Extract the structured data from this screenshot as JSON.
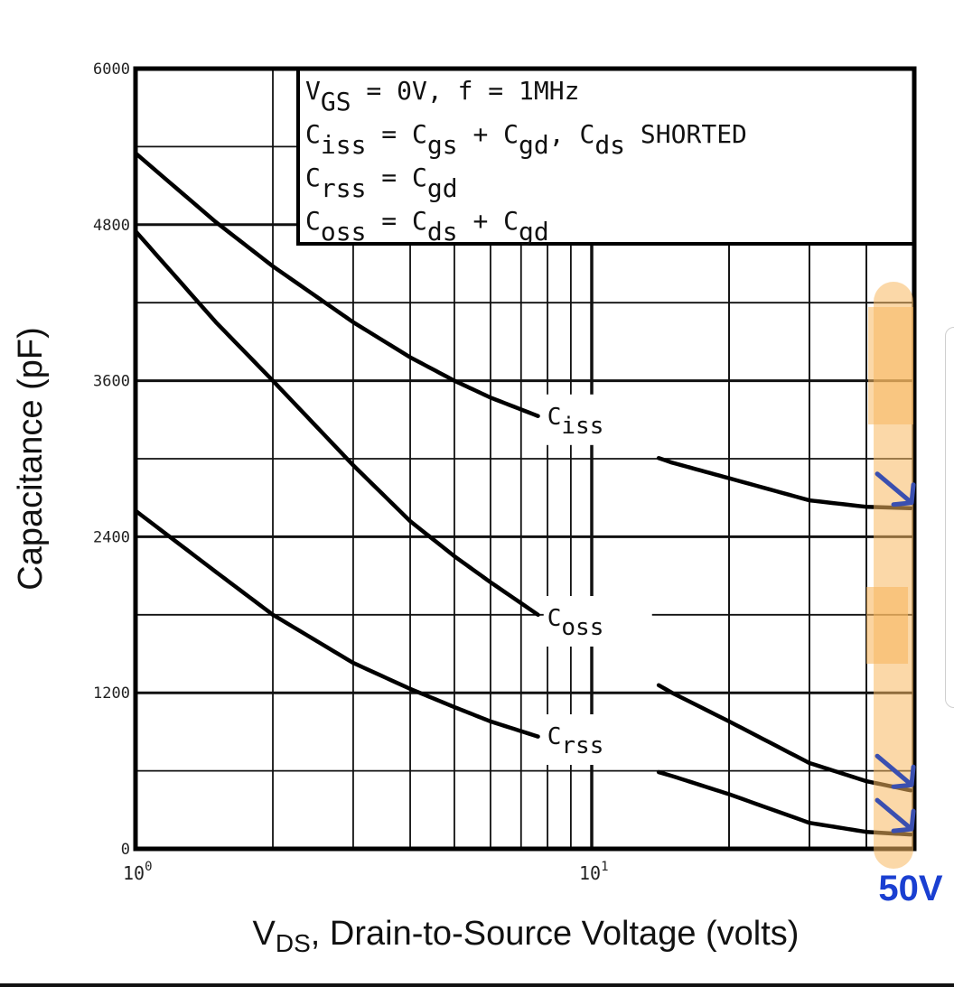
{
  "chart_data": {
    "type": "line",
    "title": "",
    "xlabel": "VDS, Drain-to-Source Voltage (volts)",
    "xlabel_main": "V",
    "xlabel_sub": "DS",
    "xlabel_rest": ", Drain-to-Source Voltage (volts)",
    "ylabel": "Capacitance (pF)",
    "xscale": "log",
    "xlim": [
      1,
      50
    ],
    "ylim": [
      0,
      6000
    ],
    "grid": true,
    "y_ticks": [
      0,
      1200,
      2400,
      3600,
      4800,
      6000
    ],
    "y_tick_labels": [
      "0",
      "1200",
      "2400",
      "3600",
      "4800",
      "6000"
    ],
    "x_ticks": [
      {
        "value": 1,
        "base": "10",
        "exp": "0"
      },
      {
        "value": 10,
        "base": "10",
        "exp": "1"
      }
    ],
    "legend_box": {
      "placement": "top-right",
      "lines": [
        {
          "parts": [
            {
              "t": "V"
            },
            {
              "t": "GS",
              "sub": true
            },
            {
              "t": " = 0V,  f = 1MHz"
            }
          ]
        },
        {
          "parts": [
            {
              "t": "C"
            },
            {
              "t": "iss",
              "sub": true
            },
            {
              "t": " = C"
            },
            {
              "t": "gs",
              "sub": true
            },
            {
              "t": " + C"
            },
            {
              "t": "gd",
              "sub": true
            },
            {
              "t": ",  C"
            },
            {
              "t": "ds",
              "sub": true
            },
            {
              "t": " SHORTED"
            }
          ]
        },
        {
          "parts": [
            {
              "t": "C"
            },
            {
              "t": "rss",
              "sub": true
            },
            {
              "t": " = C"
            },
            {
              "t": "gd",
              "sub": true
            }
          ]
        },
        {
          "parts": [
            {
              "t": "C"
            },
            {
              "t": "oss",
              "sub": true
            },
            {
              "t": " = C"
            },
            {
              "t": "ds",
              "sub": true
            },
            {
              "t": " + C"
            },
            {
              "t": "gd",
              "sub": true
            }
          ]
        }
      ]
    },
    "series": [
      {
        "name": "Ciss",
        "label_main": "C",
        "label_sub": "iss",
        "label_at": 9.5,
        "x": [
          1,
          1.5,
          2,
          3,
          4,
          5,
          6,
          8,
          10,
          15,
          20,
          30,
          40,
          50
        ],
        "y": [
          5350,
          4820,
          4480,
          4050,
          3780,
          3600,
          3470,
          3300,
          3180,
          2970,
          2850,
          2680,
          2630,
          2620
        ]
      },
      {
        "name": "Coss",
        "label_main": "C",
        "label_sub": "oss",
        "label_at": 9.5,
        "x": [
          1,
          1.5,
          2,
          3,
          4,
          5,
          6,
          8,
          10,
          15,
          20,
          30,
          40,
          50
        ],
        "y": [
          4750,
          4050,
          3600,
          2950,
          2520,
          2250,
          2050,
          1750,
          1550,
          1200,
          980,
          660,
          520,
          450
        ]
      },
      {
        "name": "Crss",
        "label_main": "C",
        "label_sub": "rss",
        "label_at": 9.5,
        "x": [
          1,
          1.5,
          2,
          3,
          4,
          5,
          6,
          8,
          10,
          15,
          20,
          30,
          40,
          50
        ],
        "y": [
          2600,
          2130,
          1800,
          1430,
          1230,
          1090,
          980,
          840,
          740,
          560,
          420,
          200,
          130,
          110
        ]
      }
    ],
    "annotations": [
      {
        "text": "50V",
        "at_x": 50,
        "color": "#1a3fd1"
      }
    ],
    "highlight_color": "#f8b860",
    "pen_color": "#3a4fb0"
  }
}
